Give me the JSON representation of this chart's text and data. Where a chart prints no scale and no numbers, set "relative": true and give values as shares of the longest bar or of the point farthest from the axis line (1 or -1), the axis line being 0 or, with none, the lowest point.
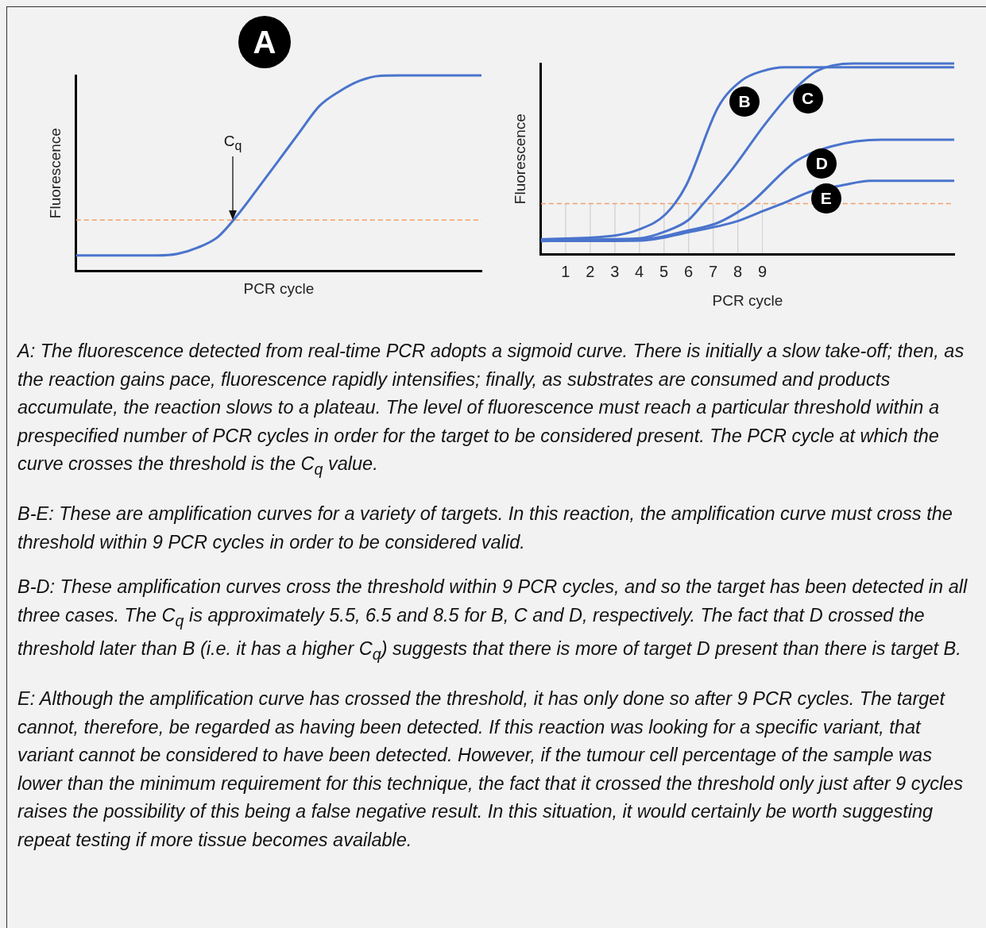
{
  "chart_data": [
    {
      "type": "line",
      "title": "A",
      "xlabel": "PCR cycle",
      "ylabel": "Fluorescence",
      "relative": true,
      "tick_labels": false,
      "categories": [
        null,
        null,
        null,
        null,
        null,
        null,
        null,
        null,
        null,
        null,
        null,
        null,
        null,
        null,
        null,
        null,
        null,
        null,
        null,
        null,
        null
      ],
      "series": [
        {
          "color": "#4a74cc",
          "values": [
            0.079,
            0.079,
            0.079,
            0.079,
            0.079,
            0.087,
            0.119,
            0.174,
            0.29,
            0.427,
            0.566,
            0.706,
            0.843,
            0.919,
            0.973,
            0.998,
            1,
            1,
            1,
            1,
            1
          ]
        }
      ],
      "ref_lines": [
        {
          "axis": "y",
          "value": 0.26,
          "color": "#f0a06a",
          "line_style": "dashed"
        }
      ],
      "annotations": [
        "C$_{q}$"
      ]
    },
    {
      "type": "line",
      "xlabel": "PCR cycle",
      "ylabel": "Fluorescence",
      "relative": true,
      "tick_labels": "x",
      "xlim": [
        0,
        16.8
      ],
      "xticks": [
        1,
        2,
        3,
        4,
        5,
        6,
        7,
        8,
        9
      ],
      "series": [
        {
          "name": "B",
          "color": "#4a74cc",
          "x": [
            0,
            3.06,
            4.0,
            5.07,
            5.9,
            7.2,
            8.15,
            9.0,
            9.9,
            16.8
          ],
          "values": [
            0.078,
            0.099,
            0.13,
            0.21,
            0.36,
            0.77,
            0.91,
            0.96,
            0.98,
            0.98
          ]
        },
        {
          "name": "C",
          "color": "#4a74cc",
          "x": [
            0,
            4.0,
            5.07,
            6.0,
            6.6,
            7.8,
            9.1,
            10.2,
            11.2,
            12.7,
            16.8
          ],
          "values": [
            0.075,
            0.083,
            0.12,
            0.18,
            0.265,
            0.45,
            0.68,
            0.85,
            0.96,
            1,
            1
          ]
        },
        {
          "name": "D",
          "color": "#4a74cc",
          "x": [
            0,
            4.1,
            6.0,
            7.1,
            8.0,
            8.5,
            10.4,
            11.8,
            13.85,
            16.8
          ],
          "values": [
            0.072,
            0.078,
            0.125,
            0.16,
            0.22,
            0.265,
            0.49,
            0.565,
            0.6,
            0.6
          ]
        },
        {
          "name": "E",
          "color": "#4a74cc",
          "x": [
            0,
            4.1,
            6.0,
            7.9,
            9.0,
            9.9,
            11.0,
            12.2,
            13.4,
            16.8
          ],
          "values": [
            0.069,
            0.072,
            0.115,
            0.17,
            0.225,
            0.27,
            0.33,
            0.36,
            0.385,
            0.385
          ]
        }
      ],
      "ref_lines": [
        {
          "axis": "y",
          "value": 0.265,
          "color": "#f0a06a",
          "line_style": "dashed"
        }
      ]
    },
    {
      "type": "other",
      "annotations": [
        "A: The fluorescence detected from real-time PCR adopts a sigmoid curve. There is initially a slow take-off; then, as the reaction gains pace, fluorescence rapidly intensifies; finally, as substrates are consumed and products accumulate, the reaction slows to a plateau. The level of fluorescence must reach a particular threshold within a prespecified number of PCR cycles in order for the target to be considered present. The PCR cycle at which the curve crosses the threshold is the C$_{q}$ value.",
        "B-E: These are amplification curves for a variety of targets. In this reaction, the amplification curve must cross the threshold within 9 PCR cycles in order to be considered valid.",
        "B-D: These amplification curves cross the threshold within 9 PCR cycles, and so the target has been detected in all three cases. The C$_{q}$ is approximately 5.5, 6.5 and 8.5 for B, C and D, respectively. The fact that D crossed the threshold later than B (i.e. it has a higher C$_{q}$) suggests that there is more of target D present than there is target B.",
        "E: Although the amplification curve has crossed the threshold, it has only done so after 9 PCR cycles. The target cannot, therefore, be regarded as having been detected. If this reaction was looking for a specific variant, that variant cannot be considered to have been detected. However, if the tumour cell percentage of the sample was lower than the minimum requirement for this technique, the fact that it crossed the threshold only just after 9 cycles raises the possibility of this being a false negative result. In this situation, it would certainly be worth suggesting repeat testing if more tissue becomes available."
      ]
    }
  ]
}
